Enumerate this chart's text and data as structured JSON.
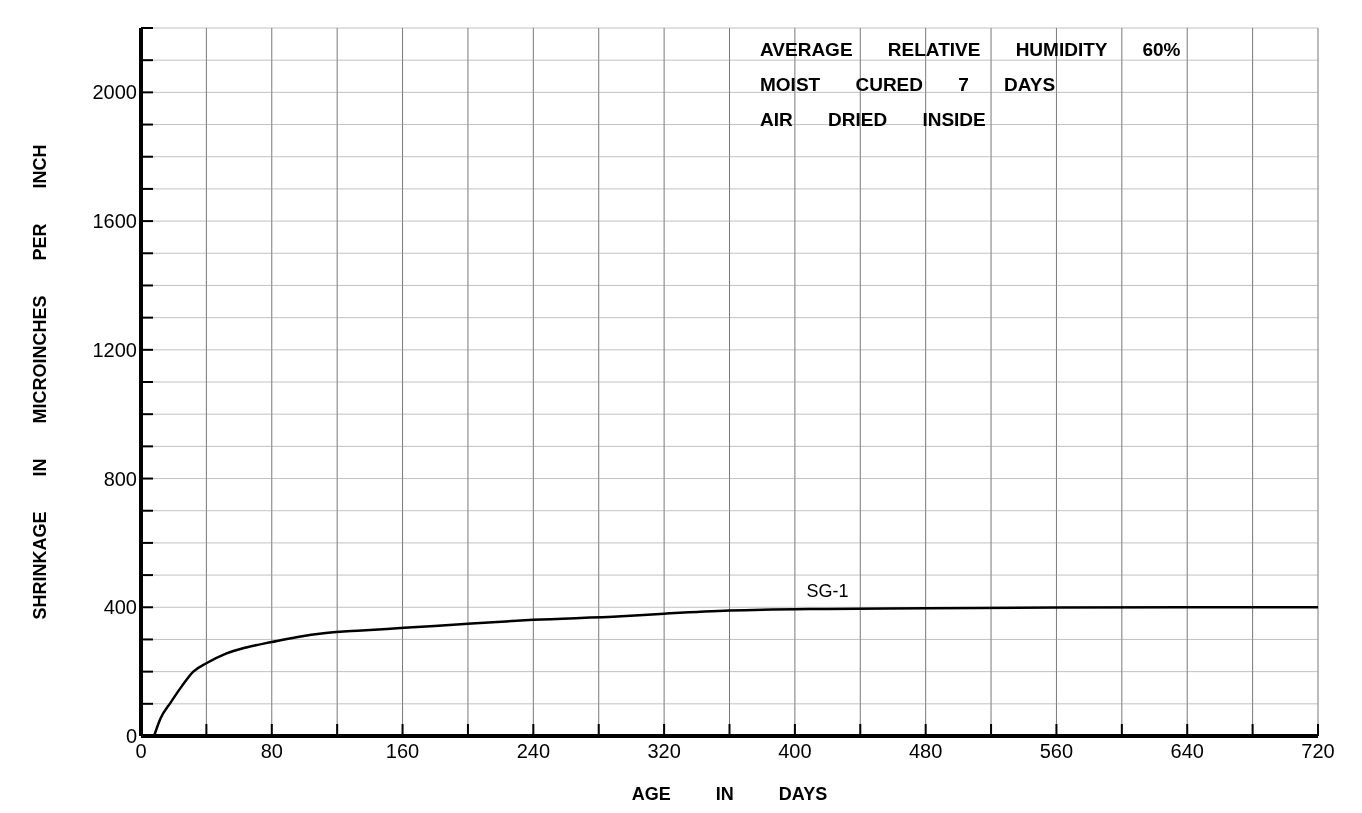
{
  "chart_data": {
    "type": "line",
    "xlabel": "AGE IN DAYS",
    "ylabel": "SHRINKAGE IN MICROINCHES PER INCH",
    "annotations": [
      "AVERAGE RELATIVE HUMIDITY 60%",
      "MOIST CURED 7 DAYS",
      "AIR DRIED INSIDE"
    ],
    "series": [
      {
        "name": "SG-1",
        "color": "#000000",
        "x": [
          8,
          12,
          18,
          25,
          32,
          40,
          52,
          65,
          80,
          95,
          113,
          135,
          161,
          200,
          240,
          294,
          320,
          360,
          420,
          480,
          560,
          640,
          720
        ],
        "values": [
          0,
          55,
          103,
          155,
          200,
          226,
          256,
          276,
          292,
          307,
          320,
          328,
          336,
          349,
          361,
          372,
          380,
          390,
          395,
          397,
          399,
          400,
          400
        ]
      }
    ],
    "xlim": [
      0,
      720
    ],
    "ylim": [
      0,
      2200
    ],
    "xticks": [
      0,
      {
        "value": 40,
        "label": null
      },
      80,
      {
        "value": 120,
        "label": null
      },
      160,
      {
        "value": 200,
        "label": null
      },
      240,
      {
        "value": 280,
        "label": null
      },
      320,
      {
        "value": 360,
        "label": null
      },
      400,
      {
        "value": 440,
        "label": null
      },
      480,
      {
        "value": 520,
        "label": null
      },
      560,
      {
        "value": 600,
        "label": null
      },
      640,
      {
        "value": 680,
        "label": null
      },
      720
    ],
    "yticks": [
      0,
      {
        "value": 100,
        "label": null
      },
      {
        "value": 200,
        "label": null
      },
      {
        "value": 300,
        "label": null
      },
      400,
      {
        "value": 500,
        "label": null
      },
      {
        "value": 600,
        "label": null
      },
      {
        "value": 700,
        "label": null
      },
      800,
      {
        "value": 900,
        "label": null
      },
      {
        "value": 1000,
        "label": null
      },
      {
        "value": 1100,
        "label": null
      },
      1200,
      {
        "value": 1300,
        "label": null
      },
      {
        "value": 1400,
        "label": null
      },
      {
        "value": 1500,
        "label": null
      },
      1600,
      {
        "value": 1700,
        "label": null
      },
      {
        "value": 1800,
        "label": null
      },
      {
        "value": 1900,
        "label": null
      },
      2000,
      {
        "value": 2100,
        "label": null
      },
      {
        "value": 2200,
        "label": null
      }
    ],
    "grid": true,
    "marker": "none",
    "line_style": "solid"
  }
}
